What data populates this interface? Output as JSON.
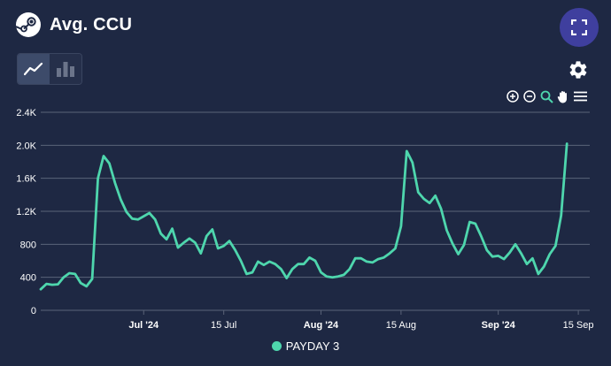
{
  "header": {
    "title": "Avg. CCU",
    "logo_icon": "steam-logo-icon"
  },
  "toolbar": {
    "fullscreen_icon": "fullscreen-icon",
    "line_chart_icon": "line-chart-icon",
    "bar_chart_icon": "bar-chart-icon",
    "settings_icon": "gear-icon",
    "zoom_tools": [
      "zoom-in-icon",
      "zoom-out-icon",
      "selection-zoom-icon",
      "pan-hand-icon",
      "menu-icon"
    ]
  },
  "colors": {
    "background": "#1e2843",
    "line": "#4ed6ad",
    "accent": "#3f3f9e",
    "gridline": "#5a6378"
  },
  "chart_data": {
    "type": "line",
    "ylim": [
      0,
      2400
    ],
    "y_ticks": [
      {
        "value": 0,
        "label": "0"
      },
      {
        "value": 400,
        "label": "400"
      },
      {
        "value": 800,
        "label": "800"
      },
      {
        "value": 1200,
        "label": "1.2K"
      },
      {
        "value": 1600,
        "label": "1.6K"
      },
      {
        "value": 2000,
        "label": "2.0K"
      },
      {
        "value": 2400,
        "label": "2.4K"
      }
    ],
    "x_start": "2024-06-13",
    "x_end": "2024-09-17",
    "x_ticks": [
      {
        "date": "2024-07-01",
        "label": "Jul '24",
        "bold": true
      },
      {
        "date": "2024-07-15",
        "label": "15 Jul",
        "bold": false
      },
      {
        "date": "2024-08-01",
        "label": "Aug '24",
        "bold": true
      },
      {
        "date": "2024-08-15",
        "label": "15 Aug",
        "bold": false
      },
      {
        "date": "2024-09-01",
        "label": "Sep '24",
        "bold": true
      },
      {
        "date": "2024-09-15",
        "label": "15 Sep",
        "bold": false
      }
    ],
    "series": [
      {
        "name": "PAYDAY 3",
        "color": "#4ed6ad",
        "points": [
          [
            "2024-06-13",
            255
          ],
          [
            "2024-06-14",
            320
          ],
          [
            "2024-06-15",
            310
          ],
          [
            "2024-06-16",
            315
          ],
          [
            "2024-06-17",
            400
          ],
          [
            "2024-06-18",
            450
          ],
          [
            "2024-06-19",
            440
          ],
          [
            "2024-06-20",
            330
          ],
          [
            "2024-06-21",
            290
          ],
          [
            "2024-06-22",
            380
          ],
          [
            "2024-06-23",
            1600
          ],
          [
            "2024-06-24",
            1870
          ],
          [
            "2024-06-25",
            1780
          ],
          [
            "2024-06-26",
            1540
          ],
          [
            "2024-06-27",
            1340
          ],
          [
            "2024-06-28",
            1190
          ],
          [
            "2024-06-29",
            1110
          ],
          [
            "2024-06-30",
            1100
          ],
          [
            "2024-07-01",
            1140
          ],
          [
            "2024-07-02",
            1180
          ],
          [
            "2024-07-03",
            1100
          ],
          [
            "2024-07-04",
            930
          ],
          [
            "2024-07-05",
            860
          ],
          [
            "2024-07-06",
            990
          ],
          [
            "2024-07-07",
            760
          ],
          [
            "2024-07-08",
            820
          ],
          [
            "2024-07-09",
            870
          ],
          [
            "2024-07-10",
            820
          ],
          [
            "2024-07-11",
            690
          ],
          [
            "2024-07-12",
            900
          ],
          [
            "2024-07-13",
            980
          ],
          [
            "2024-07-14",
            750
          ],
          [
            "2024-07-15",
            780
          ],
          [
            "2024-07-16",
            840
          ],
          [
            "2024-07-17",
            730
          ],
          [
            "2024-07-18",
            600
          ],
          [
            "2024-07-19",
            440
          ],
          [
            "2024-07-20",
            460
          ],
          [
            "2024-07-21",
            590
          ],
          [
            "2024-07-22",
            550
          ],
          [
            "2024-07-23",
            590
          ],
          [
            "2024-07-24",
            560
          ],
          [
            "2024-07-25",
            500
          ],
          [
            "2024-07-26",
            390
          ],
          [
            "2024-07-27",
            500
          ],
          [
            "2024-07-28",
            560
          ],
          [
            "2024-07-29",
            560
          ],
          [
            "2024-07-30",
            640
          ],
          [
            "2024-07-31",
            600
          ],
          [
            "2024-08-01",
            460
          ],
          [
            "2024-08-02",
            410
          ],
          [
            "2024-08-03",
            400
          ],
          [
            "2024-08-04",
            410
          ],
          [
            "2024-08-05",
            430
          ],
          [
            "2024-08-06",
            500
          ],
          [
            "2024-08-07",
            630
          ],
          [
            "2024-08-08",
            630
          ],
          [
            "2024-08-09",
            590
          ],
          [
            "2024-08-10",
            580
          ],
          [
            "2024-08-11",
            620
          ],
          [
            "2024-08-12",
            640
          ],
          [
            "2024-08-13",
            690
          ],
          [
            "2024-08-14",
            750
          ],
          [
            "2024-08-15",
            1020
          ],
          [
            "2024-08-16",
            1930
          ],
          [
            "2024-08-17",
            1790
          ],
          [
            "2024-08-18",
            1430
          ],
          [
            "2024-08-19",
            1350
          ],
          [
            "2024-08-20",
            1300
          ],
          [
            "2024-08-21",
            1390
          ],
          [
            "2024-08-22",
            1230
          ],
          [
            "2024-08-23",
            970
          ],
          [
            "2024-08-24",
            810
          ],
          [
            "2024-08-25",
            680
          ],
          [
            "2024-08-26",
            790
          ],
          [
            "2024-08-27",
            1070
          ],
          [
            "2024-08-28",
            1050
          ],
          [
            "2024-08-29",
            900
          ],
          [
            "2024-08-30",
            730
          ],
          [
            "2024-08-31",
            650
          ],
          [
            "2024-09-01",
            660
          ],
          [
            "2024-09-02",
            620
          ],
          [
            "2024-09-03",
            700
          ],
          [
            "2024-09-04",
            800
          ],
          [
            "2024-09-05",
            690
          ],
          [
            "2024-09-06",
            560
          ],
          [
            "2024-09-07",
            630
          ],
          [
            "2024-09-08",
            440
          ],
          [
            "2024-09-09",
            530
          ],
          [
            "2024-09-10",
            680
          ],
          [
            "2024-09-11",
            780
          ],
          [
            "2024-09-12",
            1150
          ],
          [
            "2024-09-13",
            2020
          ]
        ]
      }
    ]
  },
  "legend": {
    "items": [
      {
        "label": "PAYDAY 3",
        "color": "#4ed6ad"
      }
    ]
  }
}
